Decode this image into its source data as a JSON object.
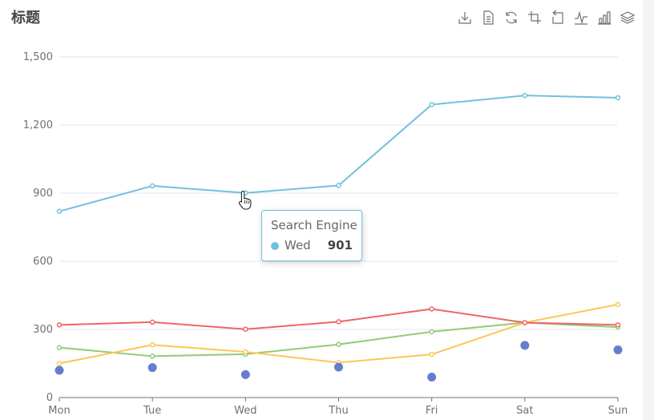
{
  "title": "标题",
  "toolbox": [
    {
      "name": "save-as-image-icon"
    },
    {
      "name": "data-view-icon"
    },
    {
      "name": "restore-icon"
    },
    {
      "name": "data-zoom-icon"
    },
    {
      "name": "data-zoom-back-icon"
    },
    {
      "name": "line-chart-icon"
    },
    {
      "name": "bar-chart-icon"
    },
    {
      "name": "stack-icon"
    }
  ],
  "tooltip": {
    "title": "Search Engine",
    "name": "Wed",
    "value": "901",
    "color": "#73c0de"
  },
  "chart_data": {
    "type": "line",
    "categories": [
      "Mon",
      "Tue",
      "Wed",
      "Thu",
      "Fri",
      "Sat",
      "Sun"
    ],
    "ylim": [
      0,
      1500
    ],
    "yticks": [
      0,
      300,
      600,
      900,
      1200,
      1500
    ],
    "ytick_labels": [
      "0",
      "300",
      "600",
      "900",
      "1,200",
      "1,500"
    ],
    "grid": true,
    "series": [
      {
        "color": "#73c0de",
        "type": "line",
        "values": [
          820,
          932,
          901,
          934,
          1290,
          1330,
          1320
        ]
      },
      {
        "color": "#ee6666",
        "type": "line",
        "values": [
          320,
          332,
          301,
          334,
          390,
          330,
          320
        ]
      },
      {
        "color": "#91cc75",
        "type": "line",
        "values": [
          220,
          182,
          191,
          234,
          290,
          330,
          310
        ]
      },
      {
        "color": "#fac858",
        "type": "line",
        "values": [
          150,
          232,
          201,
          154,
          190,
          330,
          410
        ]
      },
      {
        "color": "#5470c6",
        "type": "scatter",
        "values": [
          120,
          132,
          101,
          134,
          90,
          230,
          210
        ]
      }
    ]
  }
}
